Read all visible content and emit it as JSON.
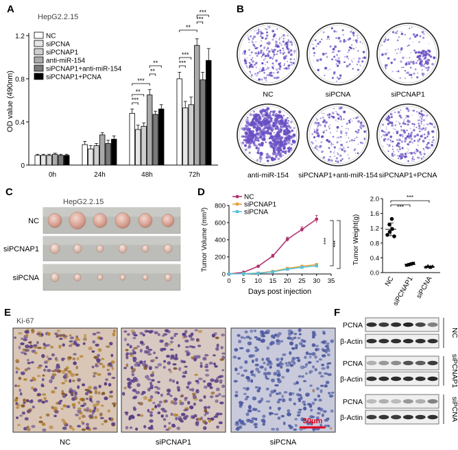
{
  "panels": {
    "A": {
      "letter": "A",
      "cell_line": "HepG2.2.15",
      "legend": [
        "NC",
        "siPCNA",
        "siPCNAP1",
        "anti-miR-154",
        "siPCNAP1+anti-miR-154",
        "siPCNAP1+PCNA"
      ],
      "colors": [
        "#ffffff",
        "#e6e6e6",
        "#cfcfcf",
        "#aaaaaa",
        "#7a7a7a",
        "#000000"
      ],
      "sig": [
        "***",
        "**",
        "***",
        "**",
        "**",
        "***",
        "***",
        "**",
        "***"
      ]
    },
    "B": {
      "letter": "B",
      "labels": [
        "NC",
        "siPCNA",
        "siPCNAP1",
        "anti-miR-154",
        "siPCNAP1+anti-miR-154",
        "siPCNAP1+PCNA"
      ],
      "colony_color": "#6a4fc4"
    },
    "C": {
      "letter": "C",
      "cell_line": "HepG2.2.15",
      "rows": [
        "NC",
        "siPCNAP1",
        "siPCNA"
      ]
    },
    "D": {
      "letter": "D",
      "sig": [
        "***",
        "***",
        "***",
        "***"
      ]
    },
    "E": {
      "letter": "E",
      "stain": "Ki-67",
      "labels": [
        "NC",
        "siPCNAP1",
        "siPCNA"
      ],
      "scale_bar": "30μm"
    },
    "F": {
      "letter": "F",
      "groups": [
        {
          "name": "NC",
          "bands": [
            "PCNA",
            "β-Actin"
          ]
        },
        {
          "name": "siPCNAP1",
          "bands": [
            "PCNA",
            "β-Actin"
          ]
        },
        {
          "name": "siPCNA",
          "bands": [
            "PCNA",
            "β-Actin"
          ]
        }
      ]
    }
  },
  "chart_data": [
    {
      "type": "bar",
      "categories": [
        "0h",
        "24h",
        "48h",
        "72h"
      ],
      "ylabel": "OD value (490nm)",
      "ylim": [
        0,
        1.2
      ],
      "yticks": [
        "0",
        "0.4",
        "0.8",
        "1.2"
      ],
      "series": [
        {
          "name": "NC",
          "values": [
            0.09,
            0.19,
            0.48,
            0.8
          ],
          "err": [
            0.01,
            0.03,
            0.04,
            0.06
          ]
        },
        {
          "name": "siPCNA",
          "values": [
            0.09,
            0.15,
            0.33,
            0.53
          ],
          "err": [
            0.01,
            0.03,
            0.04,
            0.06
          ]
        },
        {
          "name": "siPCNAP1",
          "values": [
            0.09,
            0.18,
            0.36,
            0.56
          ],
          "err": [
            0.01,
            0.02,
            0.03,
            0.07
          ]
        },
        {
          "name": "anti-miR-154",
          "values": [
            0.1,
            0.28,
            0.65,
            1.11
          ],
          "err": [
            0.01,
            0.02,
            0.05,
            0.06
          ]
        },
        {
          "name": "siPCNAP1+anti-miR-154",
          "values": [
            0.09,
            0.2,
            0.47,
            0.79
          ],
          "err": [
            0.01,
            0.03,
            0.03,
            0.07
          ]
        },
        {
          "name": "siPCNAP1+PCNA",
          "values": [
            0.09,
            0.24,
            0.52,
            0.97
          ],
          "err": [
            0.01,
            0.03,
            0.04,
            0.11
          ]
        }
      ]
    },
    {
      "type": "line",
      "xlabel": "Days post injection",
      "ylabel": "Tumor Volume (mm³)",
      "xlim": [
        0,
        35
      ],
      "ylim": [
        0,
        800
      ],
      "xticks": [
        "0",
        "5",
        "10",
        "15",
        "20",
        "25",
        "30",
        "35"
      ],
      "yticks": [
        "0",
        "200",
        "400",
        "600",
        "800"
      ],
      "x": [
        0,
        5,
        10,
        15,
        20,
        25,
        30
      ],
      "series": [
        {
          "name": "NC",
          "color": "#b0306e",
          "values": [
            0,
            20,
            90,
            210,
            405,
            520,
            640
          ],
          "err": [
            0,
            5,
            10,
            20,
            25,
            30,
            45
          ]
        },
        {
          "name": "siPCNAP1",
          "color": "#e6a23c",
          "values": [
            0,
            4,
            10,
            30,
            65,
            90,
            110
          ],
          "err": [
            0,
            2,
            3,
            6,
            8,
            10,
            12
          ]
        },
        {
          "name": "siPCNA",
          "color": "#56c1d8",
          "values": [
            0,
            3,
            8,
            25,
            55,
            78,
            95
          ],
          "err": [
            0,
            2,
            3,
            5,
            7,
            9,
            10
          ]
        }
      ]
    },
    {
      "type": "scatter",
      "ylabel": "Tumor Weight(g)",
      "ylim": [
        0,
        2.0
      ],
      "yticks": [
        "0.0",
        "0.4",
        "0.8",
        "1.2",
        "1.6",
        "2.0"
      ],
      "categories": [
        "NC",
        "siPCNAP1",
        "siPCNA"
      ],
      "groups": [
        {
          "name": "NC",
          "points": [
            1.02,
            1.1,
            1.18,
            1.3,
            1.45,
            0.98
          ],
          "mean": 1.17,
          "sd": 0.17
        },
        {
          "name": "siPCNAP1",
          "points": [
            0.2,
            0.22,
            0.24,
            0.21,
            0.23,
            0.25
          ],
          "mean": 0.22,
          "sd": 0.02
        },
        {
          "name": "siPCNA",
          "points": [
            0.15,
            0.17,
            0.16,
            0.18,
            0.14,
            0.17
          ],
          "mean": 0.16,
          "sd": 0.02
        }
      ]
    }
  ]
}
